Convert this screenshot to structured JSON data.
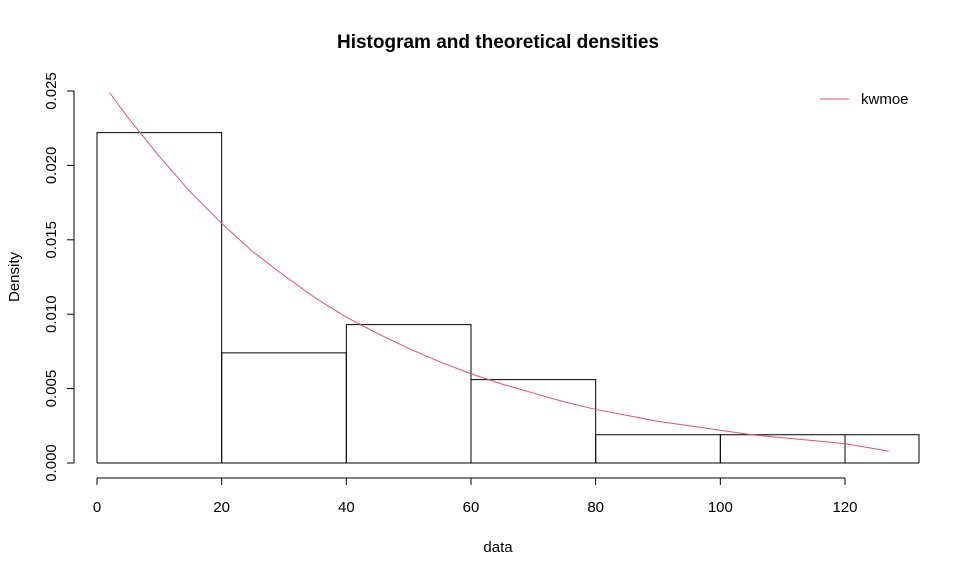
{
  "chart_data": {
    "type": "bar",
    "title": "Histogram and theoretical densities",
    "xlabel": "data",
    "ylabel": "Density",
    "xlim": [
      0,
      132
    ],
    "ylim": [
      0,
      0.025
    ],
    "x_ticks": [
      0,
      20,
      40,
      60,
      80,
      100,
      120
    ],
    "y_ticks": [
      0.0,
      0.005,
      0.01,
      0.015,
      0.02,
      0.025
    ],
    "x_tick_labels": [
      "0",
      "20",
      "40",
      "60",
      "80",
      "100",
      "120"
    ],
    "y_tick_labels": [
      "0.000",
      "0.005",
      "0.010",
      "0.015",
      "0.020",
      "0.025"
    ],
    "grid": false,
    "bins": [
      {
        "x0": 0,
        "x1": 20,
        "density": 0.0222
      },
      {
        "x0": 20,
        "x1": 40,
        "density": 0.0074
      },
      {
        "x0": 40,
        "x1": 60,
        "density": 0.0093
      },
      {
        "x0": 60,
        "x1": 80,
        "density": 0.0056
      },
      {
        "x0": 80,
        "x1": 100,
        "density": 0.0019
      },
      {
        "x0": 100,
        "x1": 120,
        "density": 0.0019
      },
      {
        "x0": 120,
        "x1": 140,
        "density": 0.0019
      }
    ],
    "series": [
      {
        "name": "kwmoe",
        "color": "#DF536B",
        "type": "line",
        "points": [
          [
            2,
            0.0249
          ],
          [
            5,
            0.0232
          ],
          [
            10,
            0.0206
          ],
          [
            15,
            0.0182
          ],
          [
            20,
            0.0161
          ],
          [
            25,
            0.0142
          ],
          [
            30,
            0.0126
          ],
          [
            35,
            0.0111
          ],
          [
            40,
            0.0098
          ],
          [
            45,
            0.0087
          ],
          [
            50,
            0.0077
          ],
          [
            55,
            0.0068
          ],
          [
            60,
            0.006
          ],
          [
            65,
            0.0053
          ],
          [
            70,
            0.0047
          ],
          [
            75,
            0.0041
          ],
          [
            80,
            0.0036
          ],
          [
            85,
            0.0032
          ],
          [
            90,
            0.0028
          ],
          [
            95,
            0.0025
          ],
          [
            100,
            0.0022
          ],
          [
            105,
            0.0019
          ],
          [
            110,
            0.0017
          ],
          [
            115,
            0.0015
          ],
          [
            120,
            0.0013
          ],
          [
            127,
            0.0008
          ]
        ]
      }
    ],
    "legend": {
      "position": "top-right",
      "entries": [
        "kwmoe"
      ]
    }
  }
}
